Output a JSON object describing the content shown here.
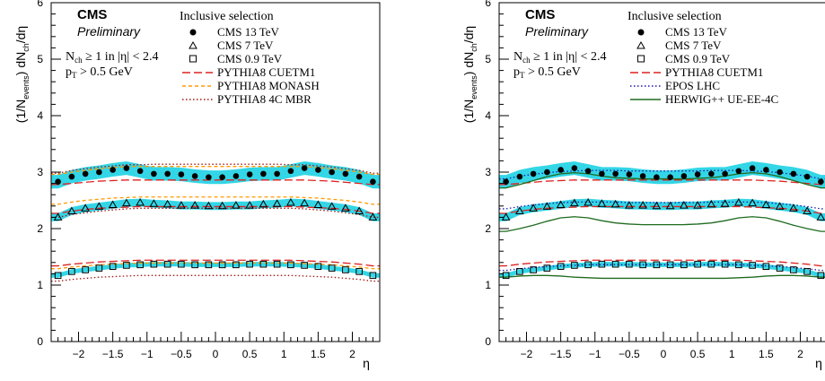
{
  "chart_data": [
    {
      "type": "scatter",
      "experiment": "CMS",
      "status": "Preliminary",
      "selection_lines": [
        "N_ch ≥ 1 in |η| < 2.4",
        "p_T > 0.5 GeV"
      ],
      "legend_title": "Inclusive selection",
      "legend_placement": "top-right",
      "xlabel": "η",
      "ylabel": "(1/N_events) dN_ch/dη",
      "xlim": [
        -2.4,
        2.4
      ],
      "ylim": [
        0,
        6
      ],
      "xticks": [
        "−2",
        "−1.5",
        "−1",
        "−0.5",
        "0",
        "0.5",
        "1",
        "1.5",
        "2"
      ],
      "yticks": [
        "0",
        "1",
        "2",
        "3",
        "4",
        "5",
        "6"
      ],
      "grid": false,
      "x": [
        -2.3,
        -2.1,
        -1.9,
        -1.7,
        -1.5,
        -1.3,
        -1.1,
        -0.9,
        -0.7,
        -0.5,
        -0.3,
        -0.1,
        0.1,
        0.3,
        0.5,
        0.7,
        0.9,
        1.1,
        1.3,
        1.5,
        1.7,
        1.9,
        2.1,
        2.3
      ],
      "data_series": [
        {
          "name": "CMS 13 TeV",
          "marker": "filled-circle",
          "band_color": "#33d6e6",
          "values": [
            2.83,
            2.92,
            2.97,
            3.0,
            3.04,
            3.07,
            3.02,
            2.97,
            2.97,
            2.96,
            2.93,
            2.91,
            2.91,
            2.93,
            2.96,
            2.97,
            2.97,
            3.02,
            3.07,
            3.04,
            3.0,
            2.97,
            2.92,
            2.83
          ],
          "band": 0.12
        },
        {
          "name": "CMS 7 TeV",
          "marker": "open-triangle",
          "band_color": "#33d6e6",
          "values": [
            2.2,
            2.31,
            2.36,
            2.39,
            2.42,
            2.45,
            2.46,
            2.44,
            2.43,
            2.41,
            2.41,
            2.4,
            2.4,
            2.41,
            2.41,
            2.43,
            2.44,
            2.46,
            2.45,
            2.42,
            2.39,
            2.36,
            2.31,
            2.2
          ],
          "band": 0.07
        },
        {
          "name": "CMS 0.9 TeV",
          "marker": "open-square",
          "band_color": "#33d6e6",
          "values": [
            1.17,
            1.24,
            1.27,
            1.3,
            1.33,
            1.35,
            1.36,
            1.37,
            1.37,
            1.37,
            1.36,
            1.36,
            1.36,
            1.36,
            1.37,
            1.37,
            1.37,
            1.36,
            1.35,
            1.33,
            1.3,
            1.27,
            1.24,
            1.17
          ],
          "band": 0.04
        }
      ],
      "mc_series": [
        {
          "name": "PYTHIA8 CUETM1",
          "color": "#dd2222",
          "style": "longdash",
          "curves": [
            [
              2.78,
              2.8,
              2.82,
              2.84,
              2.85,
              2.86,
              2.86,
              2.86,
              2.86,
              2.86,
              2.86,
              2.86,
              2.86,
              2.86,
              2.86,
              2.86,
              2.86,
              2.86,
              2.86,
              2.85,
              2.84,
              2.82,
              2.8,
              2.78
            ],
            [
              2.27,
              2.31,
              2.34,
              2.36,
              2.37,
              2.38,
              2.39,
              2.39,
              2.39,
              2.39,
              2.39,
              2.39,
              2.39,
              2.39,
              2.39,
              2.39,
              2.39,
              2.39,
              2.38,
              2.37,
              2.36,
              2.34,
              2.31,
              2.27
            ],
            [
              1.34,
              1.37,
              1.39,
              1.41,
              1.42,
              1.43,
              1.44,
              1.44,
              1.44,
              1.44,
              1.44,
              1.44,
              1.44,
              1.44,
              1.44,
              1.44,
              1.44,
              1.44,
              1.43,
              1.42,
              1.41,
              1.39,
              1.37,
              1.34
            ]
          ]
        },
        {
          "name": "PYTHIA8 MONASH",
          "color": "#ff9a00",
          "style": "dashed",
          "curves": [
            [
              2.96,
              3.0,
              3.03,
              3.06,
              3.08,
              3.1,
              3.1,
              3.1,
              3.1,
              3.1,
              3.1,
              3.1,
              3.1,
              3.1,
              3.1,
              3.1,
              3.1,
              3.1,
              3.1,
              3.08,
              3.06,
              3.03,
              3.0,
              2.96
            ],
            [
              2.43,
              2.47,
              2.5,
              2.52,
              2.54,
              2.55,
              2.56,
              2.56,
              2.56,
              2.56,
              2.56,
              2.56,
              2.56,
              2.56,
              2.56,
              2.56,
              2.56,
              2.56,
              2.55,
              2.54,
              2.52,
              2.5,
              2.47,
              2.43
            ],
            [
              1.29,
              1.32,
              1.34,
              1.36,
              1.37,
              1.38,
              1.39,
              1.39,
              1.39,
              1.39,
              1.39,
              1.39,
              1.39,
              1.39,
              1.39,
              1.39,
              1.39,
              1.39,
              1.38,
              1.37,
              1.36,
              1.34,
              1.32,
              1.29
            ]
          ]
        },
        {
          "name": "PYTHIA8 4C MBR",
          "color": "#a01818",
          "style": "dotted",
          "curves": [
            [
              2.98,
              3.03,
              3.06,
              3.09,
              3.11,
              3.13,
              3.13,
              3.14,
              3.14,
              3.14,
              3.14,
              3.14,
              3.14,
              3.14,
              3.14,
              3.14,
              3.14,
              3.13,
              3.13,
              3.11,
              3.09,
              3.06,
              3.03,
              2.98
            ],
            [
              2.2,
              2.25,
              2.28,
              2.31,
              2.33,
              2.35,
              2.36,
              2.36,
              2.36,
              2.36,
              2.36,
              2.36,
              2.36,
              2.36,
              2.36,
              2.36,
              2.36,
              2.36,
              2.35,
              2.33,
              2.31,
              2.28,
              2.25,
              2.2
            ],
            [
              1.07,
              1.1,
              1.12,
              1.14,
              1.15,
              1.16,
              1.17,
              1.17,
              1.17,
              1.17,
              1.17,
              1.17,
              1.17,
              1.17,
              1.17,
              1.17,
              1.17,
              1.17,
              1.16,
              1.15,
              1.14,
              1.12,
              1.1,
              1.07
            ]
          ]
        }
      ]
    },
    {
      "type": "scatter",
      "experiment": "CMS",
      "status": "Preliminary",
      "selection_lines": [
        "N_ch ≥ 1 in |η| < 2.4",
        "p_T > 0.5 GeV"
      ],
      "legend_title": "Inclusive selection",
      "legend_placement": "top-right",
      "xlabel": "η",
      "ylabel": "(1/N_events) dN_ch/dη",
      "xlim": [
        -2.4,
        2.4
      ],
      "ylim": [
        0,
        6
      ],
      "xticks": [
        "−2",
        "−1.5",
        "−1",
        "−0.5",
        "0",
        "0.5",
        "1",
        "1.5",
        "2"
      ],
      "yticks": [
        "0",
        "1",
        "2",
        "3",
        "4",
        "5",
        "6"
      ],
      "grid": false,
      "x": [
        -2.3,
        -2.1,
        -1.9,
        -1.7,
        -1.5,
        -1.3,
        -1.1,
        -0.9,
        -0.7,
        -0.5,
        -0.3,
        -0.1,
        0.1,
        0.3,
        0.5,
        0.7,
        0.9,
        1.1,
        1.3,
        1.5,
        1.7,
        1.9,
        2.1,
        2.3
      ],
      "data_series": [
        {
          "name": "CMS 13 TeV",
          "marker": "filled-circle",
          "band_color": "#33d6e6",
          "values": [
            2.83,
            2.92,
            2.97,
            3.0,
            3.04,
            3.07,
            3.02,
            2.97,
            2.97,
            2.96,
            2.93,
            2.91,
            2.91,
            2.93,
            2.96,
            2.97,
            2.97,
            3.02,
            3.07,
            3.04,
            3.0,
            2.97,
            2.92,
            2.83
          ],
          "band": 0.12
        },
        {
          "name": "CMS 7 TeV",
          "marker": "open-triangle",
          "band_color": "#33d6e6",
          "values": [
            2.2,
            2.31,
            2.36,
            2.39,
            2.42,
            2.45,
            2.46,
            2.44,
            2.43,
            2.41,
            2.41,
            2.4,
            2.4,
            2.41,
            2.41,
            2.43,
            2.44,
            2.46,
            2.45,
            2.42,
            2.39,
            2.36,
            2.31,
            2.2
          ],
          "band": 0.07
        },
        {
          "name": "CMS 0.9 TeV",
          "marker": "open-square",
          "band_color": "#33d6e6",
          "values": [
            1.17,
            1.24,
            1.27,
            1.3,
            1.33,
            1.35,
            1.36,
            1.37,
            1.37,
            1.37,
            1.36,
            1.36,
            1.36,
            1.36,
            1.37,
            1.37,
            1.37,
            1.36,
            1.35,
            1.33,
            1.3,
            1.27,
            1.24,
            1.17
          ],
          "band": 0.04
        }
      ],
      "mc_series": [
        {
          "name": "PYTHIA8 CUETM1",
          "color": "#dd2222",
          "style": "longdash",
          "curves": [
            [
              2.78,
              2.8,
              2.82,
              2.84,
              2.85,
              2.86,
              2.86,
              2.86,
              2.86,
              2.86,
              2.86,
              2.86,
              2.86,
              2.86,
              2.86,
              2.86,
              2.86,
              2.86,
              2.86,
              2.85,
              2.84,
              2.82,
              2.8,
              2.78
            ],
            [
              2.27,
              2.31,
              2.34,
              2.36,
              2.37,
              2.38,
              2.39,
              2.39,
              2.39,
              2.39,
              2.39,
              2.39,
              2.39,
              2.39,
              2.39,
              2.39,
              2.39,
              2.39,
              2.38,
              2.37,
              2.36,
              2.34,
              2.31,
              2.27
            ],
            [
              1.34,
              1.37,
              1.39,
              1.41,
              1.42,
              1.43,
              1.44,
              1.44,
              1.44,
              1.44,
              1.44,
              1.44,
              1.44,
              1.44,
              1.44,
              1.44,
              1.44,
              1.44,
              1.43,
              1.42,
              1.41,
              1.39,
              1.37,
              1.34
            ]
          ]
        },
        {
          "name": "EPOS LHC",
          "color": "#1a1aa8",
          "style": "dotted",
          "curves": [
            [
              2.88,
              2.93,
              2.96,
              2.99,
              3.01,
              3.02,
              3.03,
              3.03,
              3.03,
              3.02,
              3.02,
              3.02,
              3.02,
              3.02,
              3.02,
              3.03,
              3.03,
              3.03,
              3.02,
              3.01,
              2.99,
              2.96,
              2.93,
              2.88
            ],
            [
              2.35,
              2.39,
              2.42,
              2.44,
              2.46,
              2.47,
              2.47,
              2.47,
              2.47,
              2.46,
              2.46,
              2.46,
              2.46,
              2.46,
              2.46,
              2.47,
              2.47,
              2.47,
              2.47,
              2.46,
              2.44,
              2.42,
              2.39,
              2.35
            ],
            [
              1.26,
              1.29,
              1.31,
              1.33,
              1.34,
              1.35,
              1.36,
              1.36,
              1.36,
              1.36,
              1.36,
              1.36,
              1.36,
              1.36,
              1.36,
              1.36,
              1.36,
              1.36,
              1.35,
              1.34,
              1.33,
              1.31,
              1.29,
              1.26
            ]
          ]
        },
        {
          "name": "HERWIG++ UE-EE-4C",
          "color": "#1f6b1f",
          "style": "solid",
          "curves": [
            [
              2.72,
              2.78,
              2.85,
              2.92,
              2.97,
              2.99,
              2.97,
              2.93,
              2.9,
              2.89,
              2.88,
              2.88,
              2.88,
              2.88,
              2.89,
              2.9,
              2.93,
              2.97,
              2.99,
              2.97,
              2.92,
              2.85,
              2.78,
              2.72
            ],
            [
              1.95,
              2.0,
              2.06,
              2.13,
              2.19,
              2.21,
              2.19,
              2.14,
              2.1,
              2.08,
              2.07,
              2.07,
              2.07,
              2.07,
              2.08,
              2.1,
              2.14,
              2.19,
              2.21,
              2.19,
              2.13,
              2.06,
              2.0,
              1.95
            ],
            [
              1.14,
              1.16,
              1.17,
              1.17,
              1.16,
              1.14,
              1.13,
              1.12,
              1.12,
              1.12,
              1.12,
              1.12,
              1.12,
              1.12,
              1.12,
              1.12,
              1.12,
              1.13,
              1.14,
              1.16,
              1.17,
              1.17,
              1.16,
              1.14
            ]
          ]
        }
      ]
    }
  ]
}
